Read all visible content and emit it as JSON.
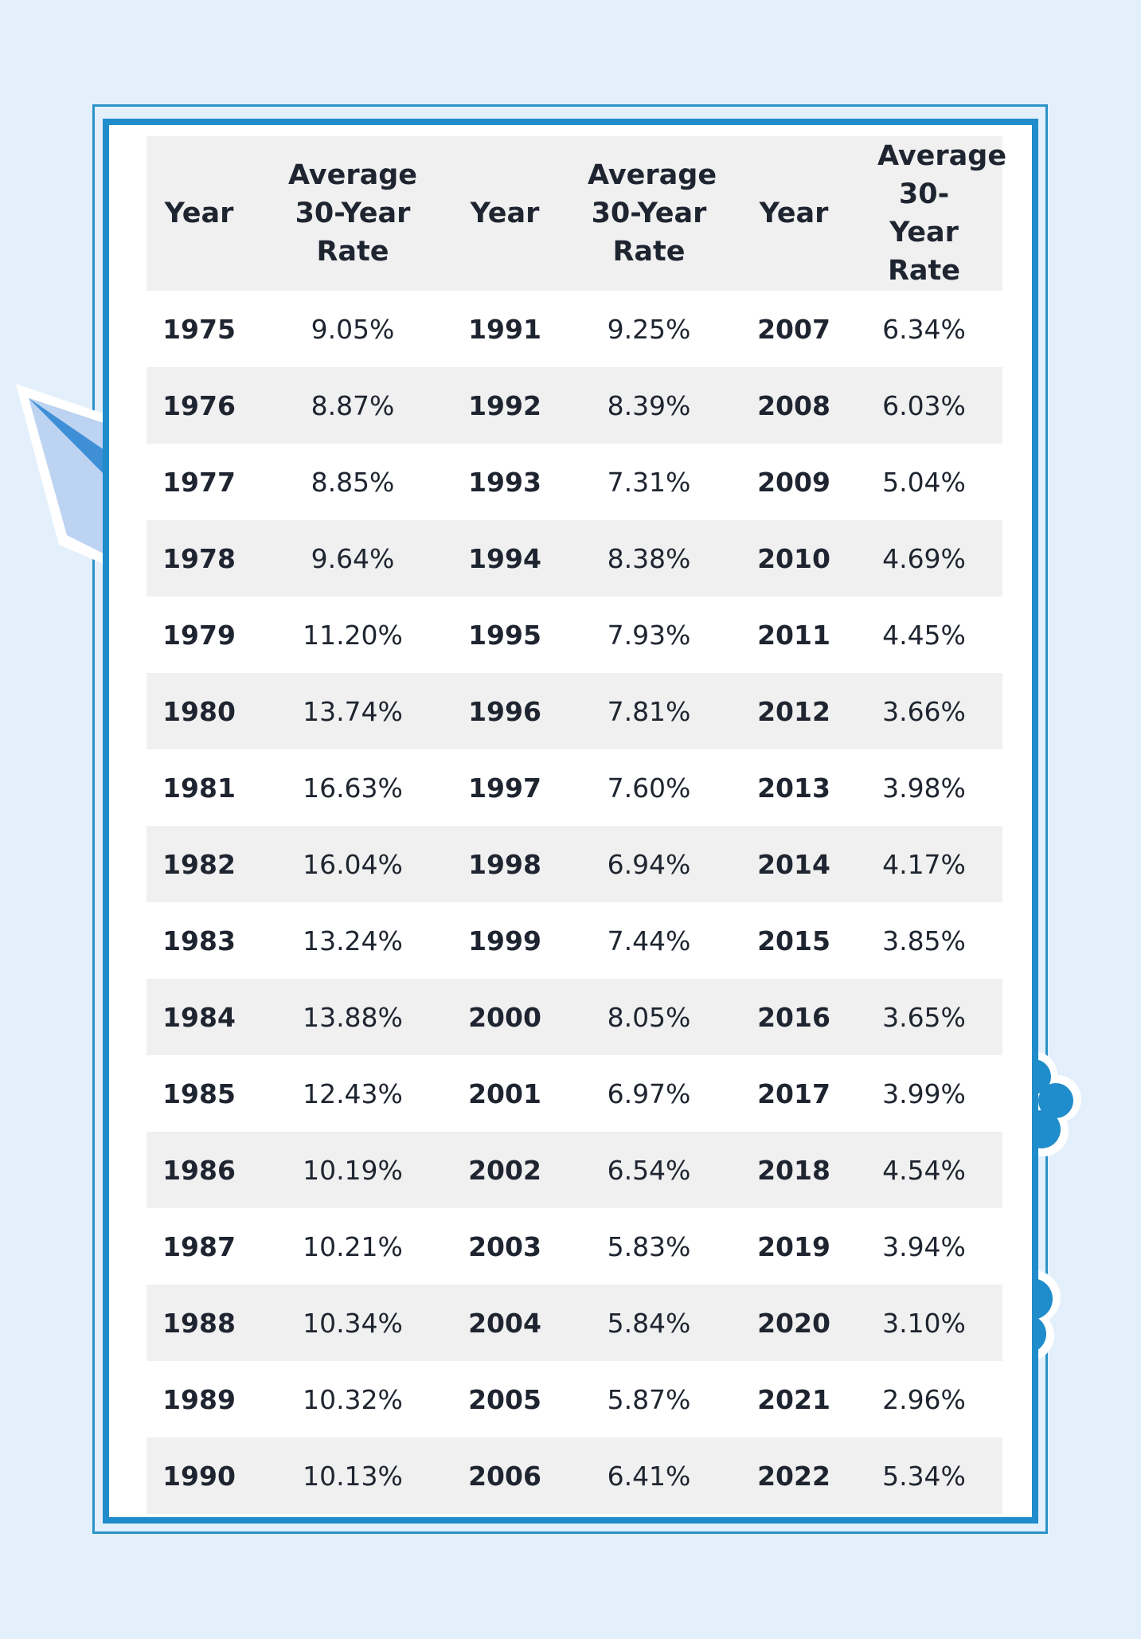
{
  "colors": {
    "background": "#e3f0fb",
    "frame": "#1f8ccb",
    "header_bg": "#f0f0f0",
    "stripe": "#f0f0f0"
  },
  "decorations": [
    "paper-plane-icon",
    "cloud-icon",
    "cloud-icon"
  ],
  "table": {
    "headers": [
      "Year",
      "Average 30-Year Rate",
      "Year",
      "Average 30-Year Rate",
      "Year",
      "Average 30-Year Rate"
    ],
    "rows": [
      [
        "1975",
        "9.05%",
        "1991",
        "9.25%",
        "2007",
        "6.34%"
      ],
      [
        "1976",
        "8.87%",
        "1992",
        "8.39%",
        "2008",
        "6.03%"
      ],
      [
        "1977",
        "8.85%",
        "1993",
        "7.31%",
        "2009",
        "5.04%"
      ],
      [
        "1978",
        "9.64%",
        "1994",
        "8.38%",
        "2010",
        "4.69%"
      ],
      [
        "1979",
        "11.20%",
        "1995",
        "7.93%",
        "2011",
        "4.45%"
      ],
      [
        "1980",
        "13.74%",
        "1996",
        "7.81%",
        "2012",
        "3.66%"
      ],
      [
        "1981",
        "16.63%",
        "1997",
        "7.60%",
        "2013",
        "3.98%"
      ],
      [
        "1982",
        "16.04%",
        "1998",
        "6.94%",
        "2014",
        "4.17%"
      ],
      [
        "1983",
        "13.24%",
        "1999",
        "7.44%",
        "2015",
        "3.85%"
      ],
      [
        "1984",
        "13.88%",
        "2000",
        "8.05%",
        "2016",
        "3.65%"
      ],
      [
        "1985",
        "12.43%",
        "2001",
        "6.97%",
        "2017",
        "3.99%"
      ],
      [
        "1986",
        "10.19%",
        "2002",
        "6.54%",
        "2018",
        "4.54%"
      ],
      [
        "1987",
        "10.21%",
        "2003",
        "5.83%",
        "2019",
        "3.94%"
      ],
      [
        "1988",
        "10.34%",
        "2004",
        "5.84%",
        "2020",
        "3.10%"
      ],
      [
        "1989",
        "10.32%",
        "2005",
        "5.87%",
        "2021",
        "2.96%"
      ],
      [
        "1990",
        "10.13%",
        "2006",
        "6.41%",
        "2022",
        "5.34%"
      ]
    ]
  }
}
